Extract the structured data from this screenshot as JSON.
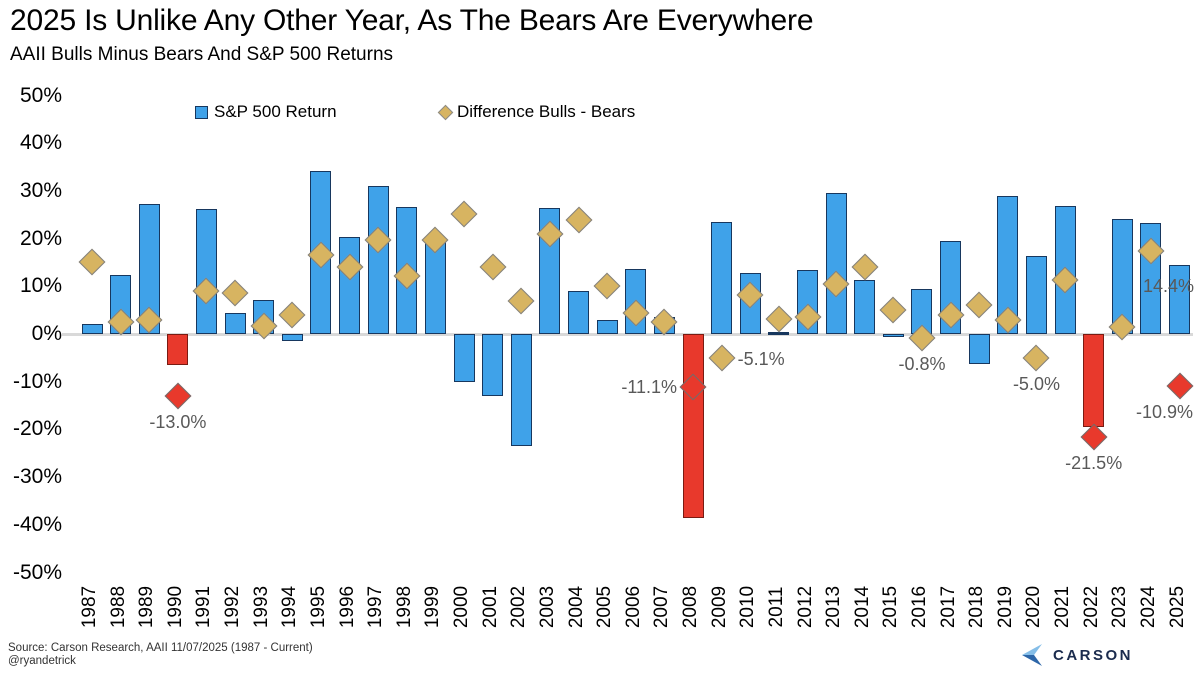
{
  "header": {
    "title": "2025 Is Unlike Any Other Year, As The Bears Are Everywhere",
    "subtitle": "AAII Bulls Minus Bears And S&P 500 Returns"
  },
  "legend": {
    "series1_label": "S&P 500 Return",
    "series2_label": "Difference Bulls - Bears"
  },
  "colors": {
    "bar_blue": "#3FA2E9",
    "bar_red": "#E8392C",
    "diamond_gold": "#D7B461",
    "label_gray": "#595959",
    "baseline_gray": "#D9D9D9"
  },
  "chart_data": {
    "type": "bar",
    "title": "2025 Is Unlike Any Other Year, As The Bears Are Everywhere",
    "subtitle": "AAII Bulls Minus Bears And S&P 500 Returns",
    "ylim": [
      -50,
      50
    ],
    "grid": false,
    "legend_position": "top",
    "yticks": [
      {
        "v": 50,
        "label": "50%"
      },
      {
        "v": 40,
        "label": "40%"
      },
      {
        "v": 30,
        "label": "30%"
      },
      {
        "v": 20,
        "label": "20%"
      },
      {
        "v": 10,
        "label": "10%"
      },
      {
        "v": 0,
        "label": "0%"
      },
      {
        "v": -10,
        "label": "-10%"
      },
      {
        "v": -20,
        "label": "-20%"
      },
      {
        "v": -30,
        "label": "-30%"
      },
      {
        "v": -40,
        "label": "-40%"
      },
      {
        "v": -50,
        "label": "-50%"
      }
    ],
    "categories": [
      "1987",
      "1988",
      "1989",
      "1990",
      "1991",
      "1992",
      "1993",
      "1994",
      "1995",
      "1996",
      "1997",
      "1998",
      "1999",
      "2000",
      "2001",
      "2002",
      "2003",
      "2004",
      "2005",
      "2006",
      "2007",
      "2008",
      "2009",
      "2010",
      "2011",
      "2012",
      "2013",
      "2014",
      "2015",
      "2016",
      "2017",
      "2018",
      "2019",
      "2020",
      "2021",
      "2022",
      "2023",
      "2024",
      "2025"
    ],
    "series": [
      {
        "name": "S&P 500 Return",
        "type": "bar",
        "values": [
          2.0,
          12.4,
          27.3,
          -6.6,
          26.3,
          4.5,
          7.1,
          -1.5,
          34.1,
          20.3,
          31.0,
          26.7,
          19.5,
          -10.1,
          -13.0,
          -23.4,
          26.4,
          9.0,
          3.0,
          13.6,
          3.5,
          -38.5,
          23.5,
          12.8,
          0.0,
          13.4,
          29.6,
          11.4,
          -0.7,
          9.5,
          19.4,
          -6.2,
          28.9,
          16.3,
          26.9,
          -19.4,
          24.2,
          23.3,
          14.4
        ],
        "red_years": [
          "1990",
          "2008",
          "2022"
        ]
      },
      {
        "name": "Difference Bulls - Bears",
        "type": "scatter",
        "marker": "diamond",
        "values": [
          15.0,
          2.5,
          3.0,
          -13.0,
          9.0,
          8.6,
          1.6,
          4.0,
          16.5,
          14.0,
          19.8,
          12.2,
          19.8,
          25.2,
          14.0,
          7.0,
          21.0,
          24.0,
          10.0,
          4.3,
          2.5,
          -11.1,
          -5.1,
          8.2,
          3.1,
          3.6,
          10.5,
          14.0,
          5.0,
          -0.8,
          4.0,
          6.0,
          3.0,
          -5.0,
          11.3,
          -21.5,
          1.5,
          17.4,
          -10.9
        ],
        "red_years": [
          "1990",
          "2008",
          "2022",
          "2025"
        ]
      }
    ],
    "annotations": [
      {
        "year": "1990",
        "series": "diamond",
        "text": "-13.0%",
        "anchor": "below"
      },
      {
        "year": "2008",
        "series": "diamond",
        "text": "-11.1%",
        "anchor": "left"
      },
      {
        "year": "2009",
        "series": "diamond",
        "text": "-5.1%",
        "anchor": "right"
      },
      {
        "year": "2016",
        "series": "diamond",
        "text": "-0.8%",
        "anchor": "below"
      },
      {
        "year": "2020",
        "series": "diamond",
        "text": "-5.0%",
        "anchor": "below"
      },
      {
        "year": "2022",
        "series": "diamond",
        "text": "-21.5%",
        "anchor": "below"
      },
      {
        "year": "2025",
        "series": "bar",
        "text": "14.4%",
        "anchor": "bar-top"
      },
      {
        "year": "2025",
        "series": "diamond",
        "text": "-10.9%",
        "anchor": "below"
      }
    ]
  },
  "footer": {
    "source_line1": "Source: Carson Research, AAII 11/07/2025 (1987 - Current)",
    "source_line2": "@ryandetrick",
    "logo_text": "CARSON"
  }
}
